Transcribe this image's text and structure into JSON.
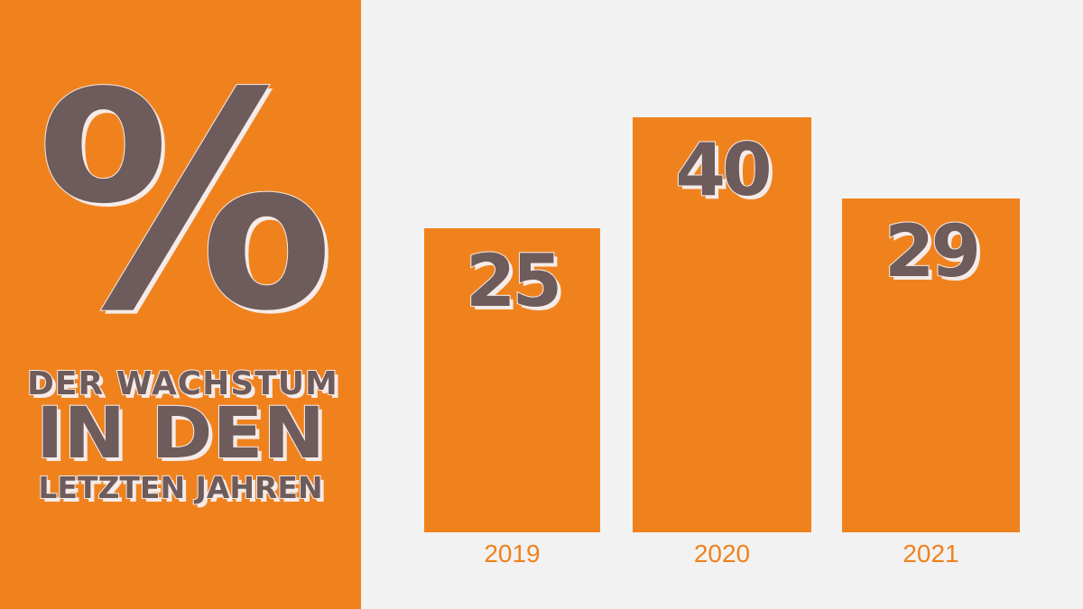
{
  "headline": {
    "symbol": "%",
    "line1": "Der Wachstum",
    "line2": "in den",
    "line3": "letzten Jahren"
  },
  "colors": {
    "accent": "#F0821E",
    "text": "#6E5B5B",
    "background": "#F2F2F2",
    "outline": "#F5EBE8"
  },
  "chart_data": {
    "type": "bar",
    "categories": [
      "2019",
      "2020",
      "2021"
    ],
    "values": [
      25,
      40,
      29
    ],
    "data_labels": [
      "25",
      "40",
      "29"
    ],
    "title": "",
    "xlabel": "",
    "ylabel": "",
    "grid": false
  }
}
